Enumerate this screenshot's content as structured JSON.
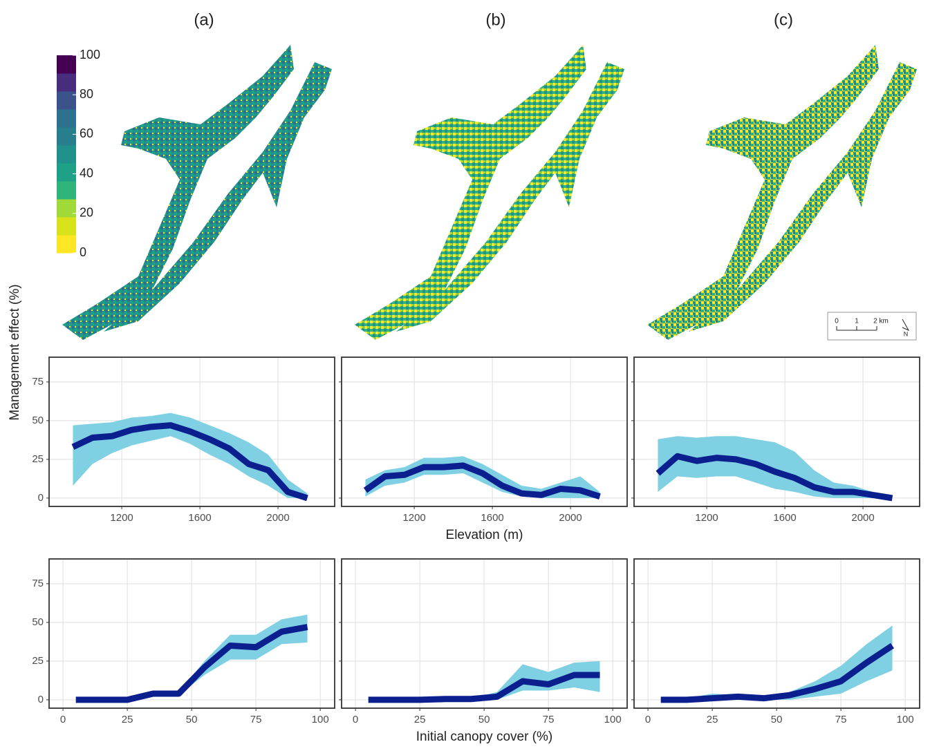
{
  "panel_labels": [
    "(a)",
    "(b)",
    "(c)"
  ],
  "colorbar": {
    "ticks": [
      0,
      20,
      40,
      60,
      80,
      100
    ],
    "range": [
      0,
      100
    ],
    "colors": [
      "#fde725",
      "#d8e219",
      "#a0da39",
      "#2fb47c",
      "#1fa187",
      "#21918c",
      "#277f8e",
      "#2c728e",
      "#3b528b",
      "#472d7b",
      "#440154"
    ]
  },
  "scale_bar": {
    "labels": [
      "0",
      "1",
      "2 km"
    ],
    "north": "N"
  },
  "y_axis_label": "Management effect (%)",
  "chart_data": [
    {
      "type": "line",
      "x": [
        950,
        1050,
        1150,
        1250,
        1350,
        1450,
        1550,
        1650,
        1750,
        1850,
        1950,
        2050,
        2150
      ],
      "series": [
        {
          "color": "#0b1f8f",
          "band_color": "#7fd0e2",
          "values": [
            33,
            39,
            40,
            44,
            46,
            47,
            43,
            38,
            32,
            22,
            18,
            4,
            0
          ],
          "lower": [
            8,
            22,
            29,
            34,
            37,
            40,
            35,
            28,
            22,
            14,
            8,
            0,
            0
          ],
          "upper": [
            47,
            48,
            49,
            52,
            53,
            55,
            52,
            47,
            42,
            36,
            28,
            12,
            3
          ]
        }
      ],
      "xlim": [
        828,
        2290
      ],
      "ylim": [
        -5.4,
        91
      ],
      "xticks": [
        1200,
        1600,
        2000
      ],
      "yticks": [
        0,
        25,
        50,
        75
      ],
      "ytick_labels": true,
      "grid": true
    },
    {
      "type": "line",
      "x": [
        950,
        1050,
        1150,
        1250,
        1350,
        1450,
        1550,
        1650,
        1750,
        1850,
        1950,
        2050,
        2150
      ],
      "xlabel": "Elevation (m)",
      "series": [
        {
          "color": "#0b1f8f",
          "band_color": "#7fd0e2",
          "values": [
            5,
            14,
            15,
            20,
            20,
            21,
            16,
            8,
            3,
            2,
            6,
            5,
            1
          ],
          "lower": [
            1,
            8,
            10,
            15,
            15,
            16,
            10,
            4,
            1,
            0,
            0,
            0,
            0
          ],
          "upper": [
            12,
            18,
            20,
            26,
            26,
            27,
            22,
            15,
            8,
            6,
            10,
            14,
            4
          ]
        }
      ],
      "xlim": [
        828,
        2290
      ],
      "ylim": [
        -5.4,
        91
      ],
      "xticks": [
        1200,
        1600,
        2000
      ],
      "yticks": [
        0,
        25,
        50,
        75
      ],
      "ytick_labels": false,
      "grid": true
    },
    {
      "type": "line",
      "x": [
        950,
        1050,
        1150,
        1250,
        1350,
        1450,
        1550,
        1650,
        1750,
        1850,
        1950,
        2050,
        2150
      ],
      "series": [
        {
          "color": "#0b1f8f",
          "band_color": "#7fd0e2",
          "values": [
            16,
            27,
            24,
            26,
            25,
            22,
            17,
            13,
            7,
            4,
            4,
            2,
            0
          ],
          "lower": [
            4,
            14,
            13,
            14,
            14,
            10,
            6,
            4,
            1,
            0,
            0,
            0,
            0
          ],
          "upper": [
            38,
            40,
            39,
            40,
            40,
            38,
            36,
            30,
            18,
            10,
            8,
            4,
            1
          ]
        }
      ],
      "xlim": [
        828,
        2290
      ],
      "ylim": [
        -5.4,
        91
      ],
      "xticks": [
        1200,
        1600,
        2000
      ],
      "yticks": [
        0,
        25,
        50,
        75
      ],
      "ytick_labels": false,
      "grid": true
    },
    {
      "type": "line",
      "x": [
        5,
        15,
        25,
        35,
        45,
        55,
        65,
        75,
        85,
        95
      ],
      "series": [
        {
          "color": "#0b1f8f",
          "band_color": "#7fd0e2",
          "values": [
            0,
            0,
            0,
            4,
            4,
            21,
            35,
            34,
            44,
            47
          ],
          "lower": [
            0,
            0,
            0,
            3,
            3,
            16,
            26,
            26,
            36,
            37
          ],
          "upper": [
            0,
            0,
            0,
            5,
            5,
            25,
            42,
            42,
            52,
            55
          ]
        }
      ],
      "xlim": [
        -5.4,
        105.6
      ],
      "ylim": [
        -5.4,
        91
      ],
      "xticks": [
        0,
        25,
        50,
        75,
        100
      ],
      "yticks": [
        0,
        25,
        50,
        75
      ],
      "ytick_labels": true,
      "grid": true
    },
    {
      "type": "line",
      "x": [
        5,
        15,
        25,
        35,
        45,
        55,
        65,
        75,
        85,
        95
      ],
      "xlabel": "Initial canopy cover (%)",
      "series": [
        {
          "color": "#0b1f8f",
          "band_color": "#7fd0e2",
          "values": [
            0,
            0,
            0,
            0.5,
            0.5,
            2,
            12,
            10,
            16,
            16
          ],
          "lower": [
            0,
            0,
            0,
            0,
            0,
            0,
            6,
            6,
            8,
            5
          ],
          "upper": [
            0,
            0,
            0,
            1,
            1,
            5,
            23,
            18,
            24,
            25
          ]
        }
      ],
      "xlim": [
        -5.4,
        105.6
      ],
      "ylim": [
        -5.4,
        91
      ],
      "xticks": [
        0,
        25,
        50,
        75,
        100
      ],
      "yticks": [
        0,
        25,
        50,
        75
      ],
      "ytick_labels": false,
      "grid": true
    },
    {
      "type": "line",
      "x": [
        5,
        15,
        25,
        35,
        45,
        55,
        65,
        75,
        85,
        95
      ],
      "series": [
        {
          "color": "#0b1f8f",
          "band_color": "#7fd0e2",
          "values": [
            0,
            0,
            1,
            2,
            1,
            3,
            7,
            12,
            24,
            35
          ],
          "lower": [
            0,
            0,
            0,
            0,
            0,
            0,
            2,
            4,
            12,
            19
          ],
          "upper": [
            0,
            1,
            4,
            3,
            2,
            5,
            12,
            22,
            36,
            48
          ]
        }
      ],
      "xlim": [
        -5.4,
        105.6
      ],
      "ylim": [
        -5.4,
        91
      ],
      "xticks": [
        0,
        25,
        50,
        75,
        100
      ],
      "yticks": [
        0,
        25,
        50,
        75
      ],
      "ytick_labels": false,
      "grid": true
    }
  ]
}
